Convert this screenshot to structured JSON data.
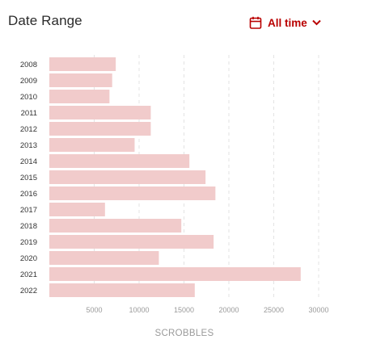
{
  "header": {
    "title": "Date Range",
    "range_label": "All time",
    "calendar_icon": "calendar-icon",
    "dropdown_icon": "chevron-down-icon",
    "accent_color": "#b90000"
  },
  "chart_data": {
    "type": "bar",
    "orientation": "horizontal",
    "categories": [
      "2008",
      "2009",
      "2010",
      "2011",
      "2012",
      "2013",
      "2014",
      "2015",
      "2016",
      "2017",
      "2018",
      "2019",
      "2020",
      "2021",
      "2022"
    ],
    "values": [
      7400,
      7000,
      6700,
      11300,
      11300,
      9500,
      15600,
      17400,
      18500,
      6200,
      14700,
      18300,
      12200,
      28000,
      16200
    ],
    "xlabel": "SCROBBLES",
    "ylabel": "",
    "xlim": [
      0,
      30000
    ],
    "xticks": [
      "5000",
      "10000",
      "15000",
      "20000",
      "25000",
      "30000"
    ],
    "grid": true,
    "bar_color": "#f1cbcb"
  }
}
